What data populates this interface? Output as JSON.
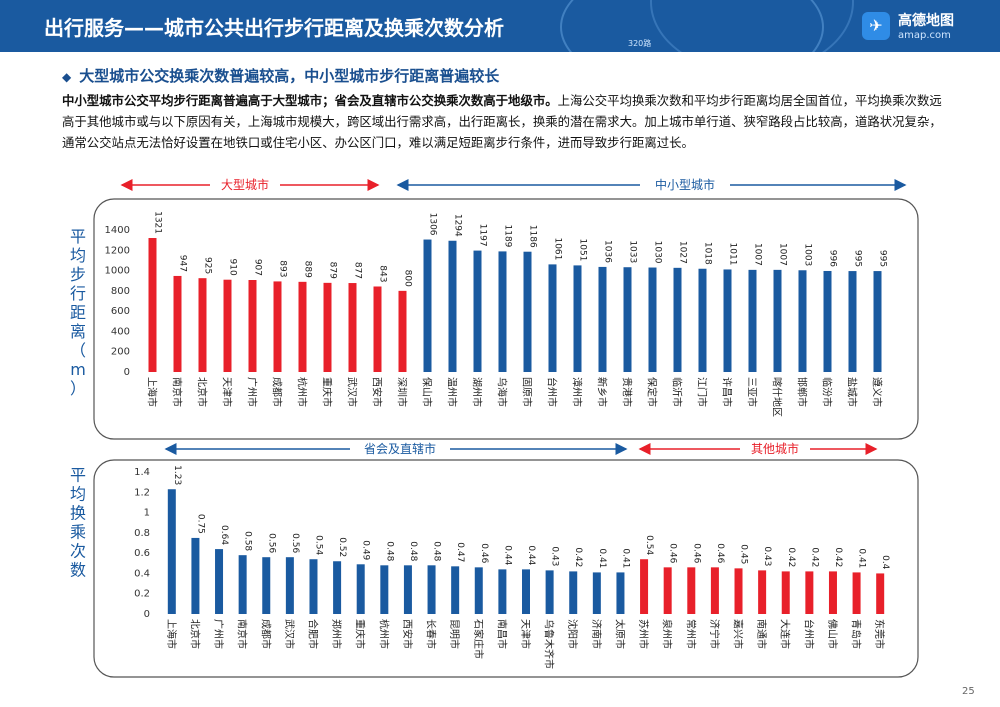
{
  "header": {
    "title": "出行服务——城市公共出行步行距离及换乘次数分析",
    "tag": "320路",
    "logo_name": "高德地图",
    "logo_url": "amap.com",
    "logo_icon": "paper-plane-icon"
  },
  "subhead": "大型城市公交换乘次数普遍较高，中小型城市步行距离普遍较长",
  "paragraph": {
    "bold": "中小型城市公交平均步行距离普遍高于大型城市；省会及直辖市公交换乘次数高于地级市。",
    "rest": "上海公交平均换乘次数和平均步行距离均居全国首位，平均换乘次数远高于其他城市或与以下原因有关，上海城市规模大，跨区域出行需求高，出行距离长，换乘的潜在需求大。加上城市单行道、狭窄路段占比较高，道路状况复杂，通常公交站点无法恰好设置在地铁口或住宅小区、办公区门口，难以满足短距离步行条件，进而导致步行距离过长。"
  },
  "page_number": "25",
  "colors": {
    "red": "#e8202a",
    "blue": "#1a5aa0",
    "header": "#1a5aa0"
  },
  "chart_data": [
    {
      "type": "bar",
      "ylabel": "平均步行距离（m）",
      "ylim": [
        0,
        1400
      ],
      "yticks": [
        "0",
        "200",
        "400",
        "600",
        "800",
        "1000",
        "1200",
        "1400"
      ],
      "group_labels": {
        "large": "大型城市",
        "small": "中小型城市"
      },
      "categories": [
        "上海市",
        "南京市",
        "北京市",
        "天津市",
        "广州市",
        "成都市",
        "杭州市",
        "重庆市",
        "武汉市",
        "西安市",
        "深圳市",
        "保山市",
        "温州市",
        "湖州市",
        "乌海市",
        "固原市",
        "台州市",
        "漳州市",
        "新乡市",
        "贵港市",
        "保定市",
        "临沂市",
        "江门市",
        "许昌市",
        "三亚市",
        "喀什地区",
        "邯郸市",
        "临汾市",
        "盐城市",
        "遵义市"
      ],
      "values": [
        1321,
        947,
        925,
        910,
        907,
        893,
        889,
        879,
        877,
        843,
        800,
        1306,
        1294,
        1197,
        1189,
        1186,
        1061,
        1051,
        1036,
        1033,
        1030,
        1027,
        1018,
        1011,
        1007,
        1007,
        1003,
        996,
        995,
        995
      ],
      "value_labels": [
        "1321",
        "947",
        "925",
        "910",
        "907",
        "893",
        "889",
        "879",
        "877",
        "843",
        "800",
        "1306",
        "1294",
        "1197",
        "1189",
        "1186",
        "1061",
        "1051",
        "1036",
        "1033",
        "1030",
        "1027",
        "1018",
        "1011",
        "1007",
        "1007",
        "1003",
        "996",
        "995",
        "995"
      ],
      "colors": [
        "red",
        "red",
        "red",
        "red",
        "red",
        "red",
        "red",
        "red",
        "red",
        "red",
        "red",
        "blue",
        "blue",
        "blue",
        "blue",
        "blue",
        "blue",
        "blue",
        "blue",
        "blue",
        "blue",
        "blue",
        "blue",
        "blue",
        "blue",
        "blue",
        "blue",
        "blue",
        "blue",
        "blue"
      ]
    },
    {
      "type": "bar",
      "ylabel": "平均换乘次数",
      "ylim": [
        0,
        1.4
      ],
      "yticks": [
        "0",
        "0.2",
        "0.4",
        "0.6",
        "0.8",
        "1",
        "1.2",
        "1.4"
      ],
      "group_labels": {
        "capital": "省会及直辖市",
        "other": "其他城市"
      },
      "categories": [
        "上海市",
        "北京市",
        "广州市",
        "南京市",
        "成都市",
        "武汉市",
        "合肥市",
        "郑州市",
        "重庆市",
        "杭州市",
        "西安市",
        "长春市",
        "昆明市",
        "石家庄市",
        "南昌市",
        "天津市",
        "乌鲁木齐市",
        "沈阳市",
        "济南市",
        "太原市",
        "苏州市",
        "泉州市",
        "常州市",
        "济宁市",
        "嘉兴市",
        "南通市",
        "大连市",
        "台州市",
        "佛山市",
        "青岛市",
        "东莞市"
      ],
      "values": [
        1.23,
        0.75,
        0.64,
        0.58,
        0.56,
        0.56,
        0.54,
        0.52,
        0.49,
        0.48,
        0.48,
        0.48,
        0.47,
        0.46,
        0.44,
        0.44,
        0.43,
        0.42,
        0.41,
        0.41,
        0.54,
        0.46,
        0.46,
        0.46,
        0.45,
        0.43,
        0.42,
        0.42,
        0.42,
        0.41,
        0.4
      ],
      "value_labels": [
        "1.23",
        "0.75",
        "0.64",
        "0.58",
        "0.56",
        "0.56",
        "0.54",
        "0.52",
        "0.49",
        "0.48",
        "0.48",
        "0.48",
        "0.47",
        "0.46",
        "0.44",
        "0.44",
        "0.43",
        "0.42",
        "0.41",
        "0.41",
        "0.54",
        "0.46",
        "0.46",
        "0.46",
        "0.45",
        "0.43",
        "0.42",
        "0.42",
        "0.42",
        "0.41",
        "0.4"
      ],
      "colors": [
        "blue",
        "blue",
        "blue",
        "blue",
        "blue",
        "blue",
        "blue",
        "blue",
        "blue",
        "blue",
        "blue",
        "blue",
        "blue",
        "blue",
        "blue",
        "blue",
        "blue",
        "blue",
        "blue",
        "blue",
        "red",
        "red",
        "red",
        "red",
        "red",
        "red",
        "red",
        "red",
        "red",
        "red",
        "red"
      ]
    }
  ]
}
